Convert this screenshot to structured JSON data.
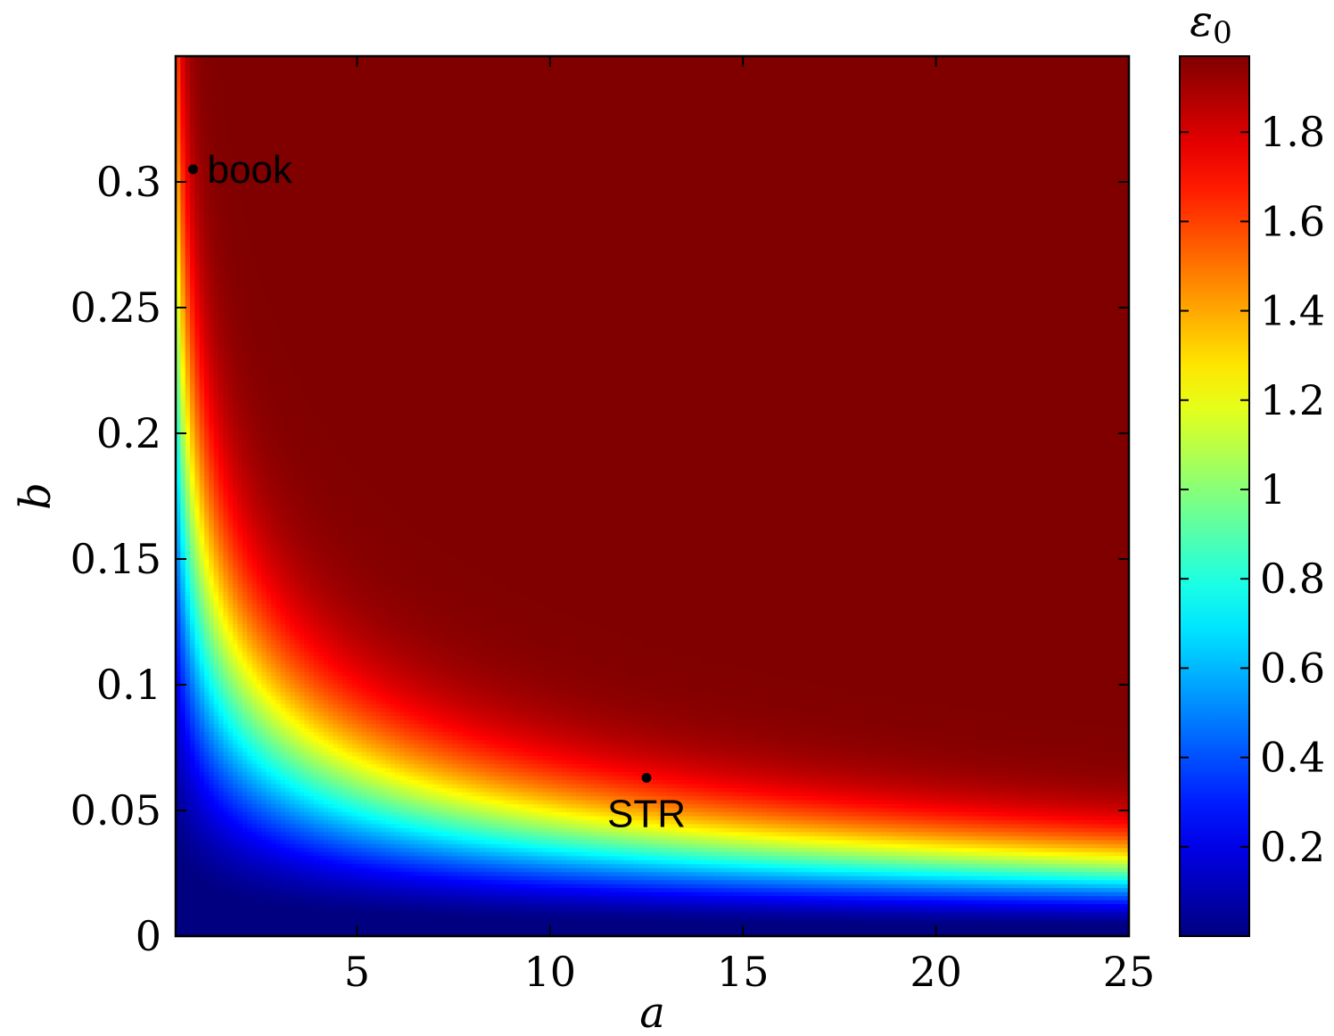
{
  "chart_data": {
    "type": "heatmap",
    "xlabel": "a",
    "ylabel": "b",
    "colorbar_label": "ε",
    "colorbar_label_sub": "0",
    "xlim": [
      0.3,
      25
    ],
    "ylim": [
      0,
      0.35
    ],
    "clim": [
      0,
      1.97
    ],
    "colormap": "jet",
    "x_ticks": [
      5,
      10,
      15,
      20,
      25
    ],
    "x_tick_labels": [
      "5",
      "10",
      "15",
      "20",
      "25"
    ],
    "y_ticks": [
      0,
      0.05,
      0.1,
      0.15,
      0.2,
      0.25,
      0.3
    ],
    "y_tick_labels": [
      "0",
      "0.05",
      "0.1",
      "0.15",
      "0.2",
      "0.25",
      "0.3"
    ],
    "colorbar_ticks": [
      0.2,
      0.4,
      0.6,
      0.8,
      1,
      1.2,
      1.4,
      1.6,
      1.8
    ],
    "colorbar_tick_labels": [
      "0.2",
      "0.4",
      "0.6",
      "0.8",
      "1",
      "1.2",
      "1.4",
      "1.6",
      "1.8"
    ],
    "annotations": [
      {
        "label": "book",
        "a": 0.75,
        "b": 0.305
      },
      {
        "label": "STR",
        "a": 12.5,
        "b": 0.063
      }
    ],
    "grid": false
  }
}
